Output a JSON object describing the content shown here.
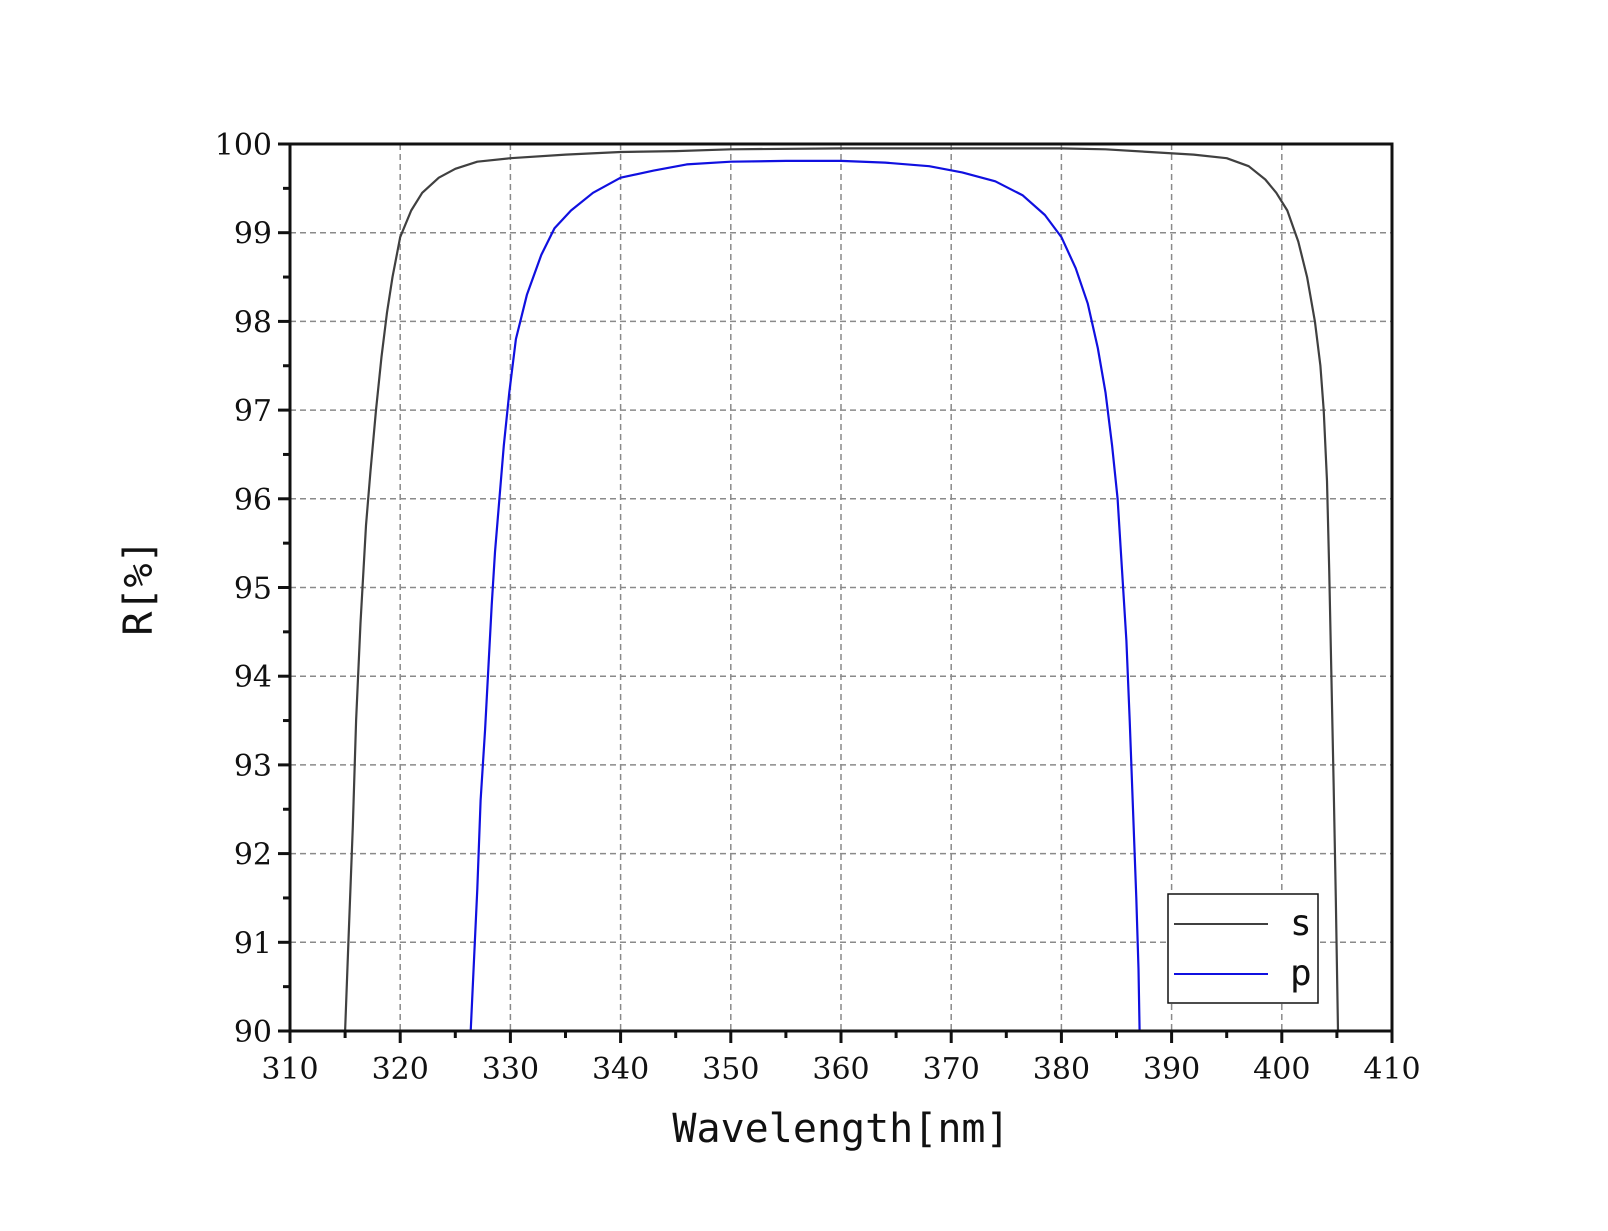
{
  "chart_data": {
    "type": "line",
    "xlabel": "Wavelength[nm]",
    "ylabel": "R[%]",
    "xlim": [
      310,
      410
    ],
    "ylim": [
      90,
      100
    ],
    "xticks": [
      310,
      320,
      330,
      340,
      350,
      360,
      370,
      380,
      390,
      400,
      410
    ],
    "yticks": [
      90,
      91,
      92,
      93,
      94,
      95,
      96,
      97,
      98,
      99,
      100
    ],
    "x_tick_labels": [
      "310",
      "320",
      "330",
      "340",
      "350",
      "360",
      "370",
      "380",
      "390",
      "400",
      "410"
    ],
    "y_tick_labels": [
      "90",
      "91",
      "92",
      "93",
      "94",
      "95",
      "96",
      "97",
      "98",
      "99",
      "100"
    ],
    "grid": true,
    "legend_position": "bottom-right",
    "series": [
      {
        "name": "s",
        "color": "#404040",
        "points": [
          [
            315.0,
            90.0
          ],
          [
            315.3,
            91.0
          ],
          [
            315.7,
            92.3
          ],
          [
            316.0,
            93.5
          ],
          [
            316.4,
            94.6
          ],
          [
            316.9,
            95.7
          ],
          [
            317.3,
            96.3
          ],
          [
            317.8,
            97.0
          ],
          [
            318.3,
            97.6
          ],
          [
            318.8,
            98.1
          ],
          [
            319.3,
            98.5
          ],
          [
            320.0,
            98.95
          ],
          [
            321.0,
            99.25
          ],
          [
            322.0,
            99.45
          ],
          [
            323.5,
            99.62
          ],
          [
            325.0,
            99.72
          ],
          [
            327.0,
            99.8
          ],
          [
            330.0,
            99.84
          ],
          [
            335.0,
            99.88
          ],
          [
            340.0,
            99.91
          ],
          [
            345.0,
            99.92
          ],
          [
            350.0,
            99.94
          ],
          [
            360.0,
            99.95
          ],
          [
            370.0,
            99.95
          ],
          [
            380.0,
            99.95
          ],
          [
            384.0,
            99.94
          ],
          [
            388.0,
            99.91
          ],
          [
            392.0,
            99.88
          ],
          [
            395.0,
            99.84
          ],
          [
            397.0,
            99.75
          ],
          [
            398.5,
            99.6
          ],
          [
            399.5,
            99.45
          ],
          [
            400.5,
            99.25
          ],
          [
            401.5,
            98.9
          ],
          [
            402.3,
            98.5
          ],
          [
            403.0,
            98.0
          ],
          [
            403.5,
            97.5
          ],
          [
            403.8,
            97.0
          ],
          [
            404.1,
            96.2
          ],
          [
            404.3,
            95.2
          ],
          [
            404.5,
            94.0
          ],
          [
            404.7,
            92.8
          ],
          [
            404.9,
            91.5
          ],
          [
            405.1,
            90.0
          ]
        ]
      },
      {
        "name": "p",
        "color": "#1010e0",
        "points": [
          [
            326.4,
            90.0
          ],
          [
            326.7,
            90.8
          ],
          [
            327.0,
            91.6
          ],
          [
            327.3,
            92.6
          ],
          [
            327.7,
            93.4
          ],
          [
            328.0,
            94.1
          ],
          [
            328.3,
            94.8
          ],
          [
            328.6,
            95.4
          ],
          [
            329.0,
            96.0
          ],
          [
            329.4,
            96.6
          ],
          [
            329.9,
            97.2
          ],
          [
            330.5,
            97.8
          ],
          [
            331.5,
            98.3
          ],
          [
            332.8,
            98.75
          ],
          [
            334.0,
            99.05
          ],
          [
            335.5,
            99.25
          ],
          [
            337.5,
            99.45
          ],
          [
            340.0,
            99.62
          ],
          [
            343.0,
            99.7
          ],
          [
            346.0,
            99.77
          ],
          [
            350.0,
            99.8
          ],
          [
            355.0,
            99.81
          ],
          [
            360.0,
            99.81
          ],
          [
            364.0,
            99.79
          ],
          [
            368.0,
            99.75
          ],
          [
            371.0,
            99.68
          ],
          [
            374.0,
            99.58
          ],
          [
            376.5,
            99.42
          ],
          [
            378.5,
            99.2
          ],
          [
            380.0,
            98.95
          ],
          [
            381.3,
            98.6
          ],
          [
            382.4,
            98.2
          ],
          [
            383.3,
            97.7
          ],
          [
            384.0,
            97.2
          ],
          [
            384.6,
            96.6
          ],
          [
            385.1,
            96.0
          ],
          [
            385.5,
            95.2
          ],
          [
            385.9,
            94.4
          ],
          [
            386.2,
            93.5
          ],
          [
            386.5,
            92.5
          ],
          [
            386.8,
            91.5
          ],
          [
            387.0,
            90.7
          ],
          [
            387.1,
            90.0
          ]
        ]
      }
    ]
  }
}
